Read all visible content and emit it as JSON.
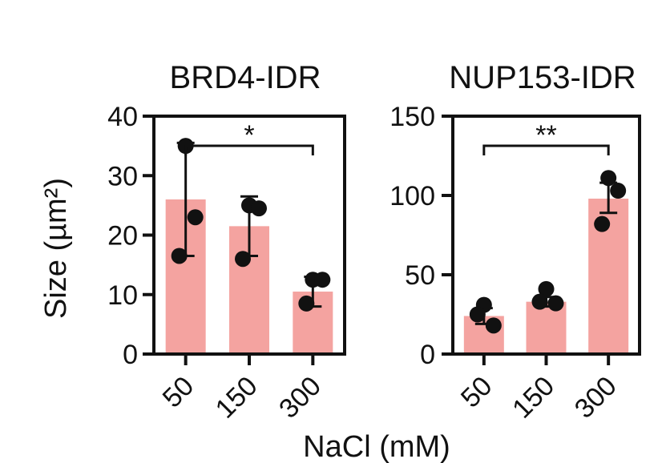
{
  "figure": {
    "shared_ylabel": "Size (µm²)",
    "shared_xlabel": "NaCl (mM)"
  },
  "chart_data": [
    {
      "type": "bar",
      "title": "BRD4-IDR",
      "categories": [
        "50",
        "150",
        "300"
      ],
      "values": [
        26,
        21.5,
        10.5
      ],
      "error_bars": [
        [
          16.5,
          35.5
        ],
        [
          16.5,
          26.5
        ],
        [
          8.0,
          13.0
        ]
      ],
      "points": [
        [
          35,
          23,
          16.5
        ],
        [
          25,
          24.5,
          16
        ],
        [
          12.5,
          12.5,
          8.5
        ]
      ],
      "ylim": [
        0,
        40
      ],
      "yticks": [
        "0",
        "10",
        "20",
        "30",
        "40"
      ],
      "significance": {
        "from": "50",
        "to": "300",
        "label": "*"
      },
      "bar_color": "#f4a3a0",
      "point_color": "#111111"
    },
    {
      "type": "bar",
      "title": "NUP153-IDR",
      "categories": [
        "50",
        "150",
        "300"
      ],
      "values": [
        24,
        33,
        98
      ],
      "error_bars": [
        [
          19,
          29
        ],
        [
          30,
          36
        ],
        [
          89,
          108
        ]
      ],
      "points": [
        [
          31,
          18,
          25
        ],
        [
          41,
          32,
          33
        ],
        [
          111,
          103,
          82
        ]
      ],
      "ylim": [
        0,
        150
      ],
      "yticks": [
        "0",
        "50",
        "100",
        "150"
      ],
      "significance": {
        "from": "50",
        "to": "300",
        "label": "**"
      },
      "bar_color": "#f4a3a0",
      "point_color": "#111111"
    }
  ]
}
